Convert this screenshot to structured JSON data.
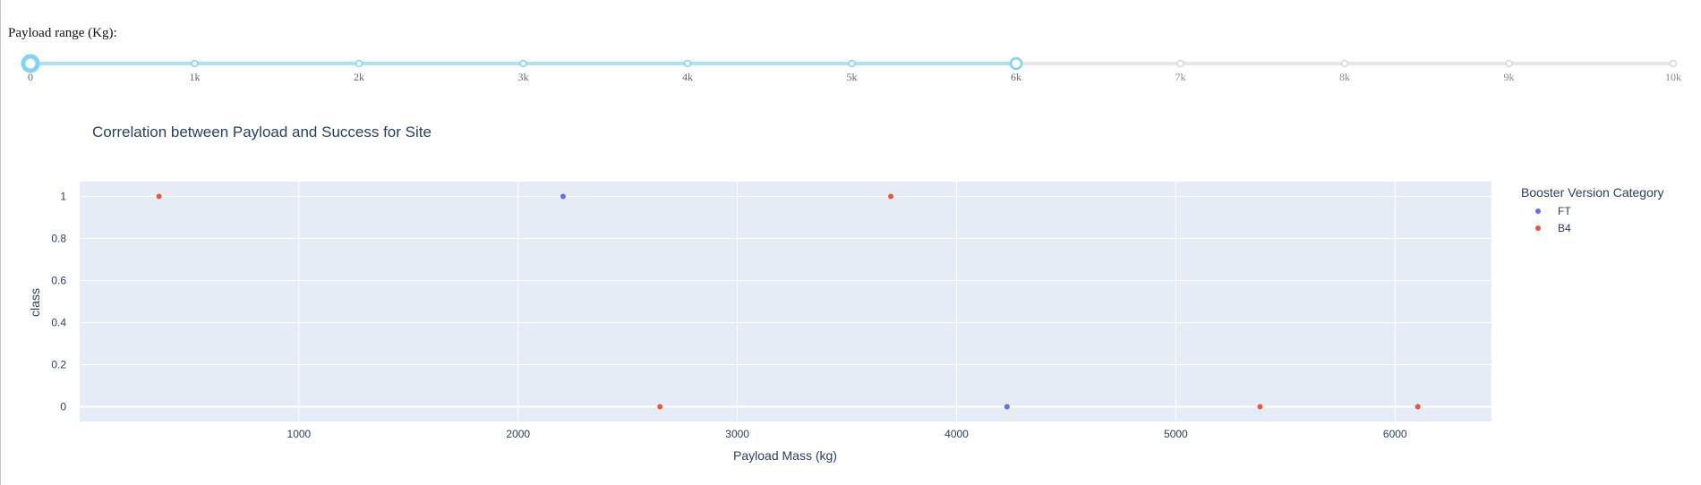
{
  "slider": {
    "label": "Payload range (Kg):",
    "min": 0,
    "max": 10000,
    "step_marks": [
      {
        "value": 0,
        "label": "0"
      },
      {
        "value": 1000,
        "label": "1k"
      },
      {
        "value": 2000,
        "label": "2k"
      },
      {
        "value": 3000,
        "label": "3k"
      },
      {
        "value": 4000,
        "label": "4k"
      },
      {
        "value": 5000,
        "label": "5k"
      },
      {
        "value": 6000,
        "label": "6k"
      },
      {
        "value": 7000,
        "label": "7k"
      },
      {
        "value": 8000,
        "label": "8k"
      },
      {
        "value": 9000,
        "label": "9k"
      },
      {
        "value": 10000,
        "label": "10k"
      }
    ],
    "selected_range": [
      0,
      6000
    ],
    "colors": {
      "active": "#abe2fb",
      "active_handle": "#7fd3f7",
      "inactive": "#e6e6e6",
      "inactive_dot": "#d6d6d6",
      "label_inactive": "#8c8c8c",
      "label_active": "#666666"
    }
  },
  "chart_data": {
    "type": "scatter",
    "title": "Correlation between Payload and Success for Site",
    "xlabel": "Payload Mass (kg)",
    "ylabel": "class",
    "xlim": [
      0,
      6440
    ],
    "ylim": [
      -0.07,
      1.07
    ],
    "xticks": [
      1000,
      2000,
      3000,
      4000,
      5000,
      6000
    ],
    "yticks": [
      0,
      0.2,
      0.4,
      0.6,
      0.8,
      1
    ],
    "ytick_labels": [
      "0",
      "0.2",
      "0.4",
      "0.6",
      "0.8",
      "1"
    ],
    "grid": true,
    "legend_title": "Booster Version Category",
    "legend_position": "right",
    "plot_bg": "#e5ecf6",
    "series": [
      {
        "name": "FT",
        "color": "#636efa",
        "points": [
          {
            "x": 2205,
            "y": 1
          },
          {
            "x": 4230,
            "y": 0
          }
        ]
      },
      {
        "name": "B4",
        "color": "#ef553b",
        "points": [
          {
            "x": 362,
            "y": 1
          },
          {
            "x": 3700,
            "y": 1
          },
          {
            "x": 2647,
            "y": 0
          },
          {
            "x": 5384,
            "y": 0
          },
          {
            "x": 6104,
            "y": 0
          }
        ]
      }
    ]
  }
}
